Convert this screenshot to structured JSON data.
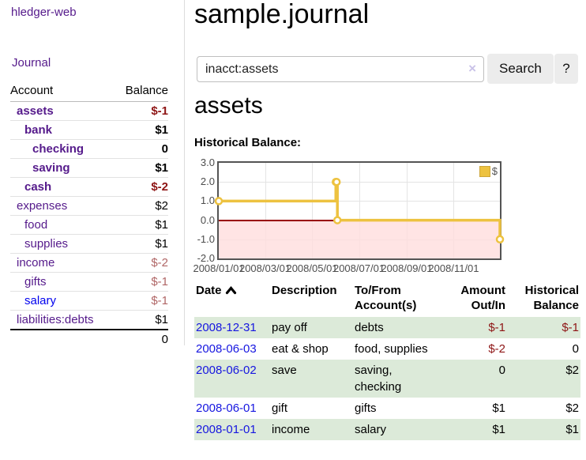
{
  "sidebar": {
    "brand": "hledger-web",
    "journal_label": "Journal",
    "accounts_table": {
      "headers": {
        "account": "Account",
        "balance": "Balance"
      },
      "rows": [
        {
          "account": "assets",
          "depth": 0,
          "bold": true,
          "balance": "$-1",
          "balance_style": "neg-strong"
        },
        {
          "account": "bank",
          "depth": 1,
          "bold": true,
          "balance": "$1",
          "balance_style": "pos"
        },
        {
          "account": "checking",
          "depth": 2,
          "bold": true,
          "balance": "0",
          "balance_style": "pos"
        },
        {
          "account": "saving",
          "depth": 2,
          "bold": true,
          "balance": "$1",
          "balance_style": "pos"
        },
        {
          "account": "cash",
          "depth": 1,
          "bold": true,
          "balance": "$-2",
          "balance_style": "neg-strong"
        },
        {
          "account": "expenses",
          "depth": 0,
          "bold": false,
          "balance": "$2",
          "balance_style": "pos"
        },
        {
          "account": "food",
          "depth": 1,
          "bold": false,
          "balance": "$1",
          "balance_style": "pos"
        },
        {
          "account": "supplies",
          "depth": 1,
          "bold": false,
          "balance": "$1",
          "balance_style": "pos"
        },
        {
          "account": "income",
          "depth": 0,
          "bold": false,
          "balance": "$-2",
          "balance_style": "neg-soft"
        },
        {
          "account": "gifts",
          "depth": 1,
          "bold": false,
          "balance": "$-1",
          "balance_style": "neg-soft"
        },
        {
          "account": "salary",
          "depth": 1,
          "bold": false,
          "balance": "$-1",
          "balance_style": "neg-soft",
          "link_color": "blue"
        },
        {
          "account": "liabilities:debts",
          "depth": 0,
          "bold": false,
          "balance": "$1",
          "balance_style": "pos"
        }
      ],
      "total": "0"
    }
  },
  "main": {
    "title": "sample.journal",
    "search": {
      "value": "inacct:assets",
      "clear_icon": "×",
      "button_label": "Search",
      "help_label": "?"
    },
    "section_title": "assets",
    "chart_label": "Historical Balance:"
  },
  "chart_data": {
    "type": "line",
    "step": true,
    "title": "Historical Balance",
    "series": [
      {
        "name": "$",
        "color": "#edc240",
        "points": [
          [
            "2008-01-01",
            1
          ],
          [
            "2008-06-01",
            2
          ],
          [
            "2008-06-02",
            2
          ],
          [
            "2008-06-03",
            0
          ],
          [
            "2008-12-31",
            -1
          ]
        ]
      }
    ],
    "x_range": [
      "2008-01-01",
      "2008-12-31"
    ],
    "ylim": [
      -2,
      3
    ],
    "y_ticks": [
      3,
      2,
      1,
      0,
      -1,
      -2
    ],
    "x_ticks": [
      {
        "date": "2008-01-01",
        "label": "2008/01/01"
      },
      {
        "date": "2008-03-01",
        "label": "2008/03/01"
      },
      {
        "date": "2008-05-01",
        "label": "2008/05/01"
      },
      {
        "date": "2008-07-01",
        "label": "2008/07/01"
      },
      {
        "date": "2008-09-01",
        "label": "2008/09/01"
      },
      {
        "date": "2008-11-01",
        "label": "2008/11/01"
      }
    ],
    "legend": {
      "label": "$",
      "position": "top-right"
    },
    "grid": true,
    "negative_region_fill": "#ffdddd",
    "zero_line_color": "#990000"
  },
  "register": {
    "headers": {
      "date": "Date",
      "description": "Description",
      "accounts": "To/From Account(s)",
      "amount": "Amount Out/In",
      "balance": "Historical Balance"
    },
    "rows": [
      {
        "date": "2008-12-31",
        "description": "pay off",
        "accounts": "debts",
        "amount": "$-1",
        "amount_neg": true,
        "balance": "$-1",
        "balance_neg": true,
        "shaded": true
      },
      {
        "date": "2008-06-03",
        "description": "eat & shop",
        "accounts": "food, supplies",
        "amount": "$-2",
        "amount_neg": true,
        "balance": "0",
        "balance_neg": false,
        "shaded": false
      },
      {
        "date": "2008-06-02",
        "description": "save",
        "accounts": "saving, checking",
        "amount": "0",
        "amount_neg": false,
        "balance": "$2",
        "balance_neg": false,
        "shaded": true
      },
      {
        "date": "2008-06-01",
        "description": "gift",
        "accounts": "gifts",
        "amount": "$1",
        "amount_neg": false,
        "balance": "$2",
        "balance_neg": false,
        "shaded": false
      },
      {
        "date": "2008-01-01",
        "description": "income",
        "accounts": "salary",
        "amount": "$1",
        "amount_neg": false,
        "balance": "$1",
        "balance_neg": false,
        "shaded": true
      }
    ]
  }
}
